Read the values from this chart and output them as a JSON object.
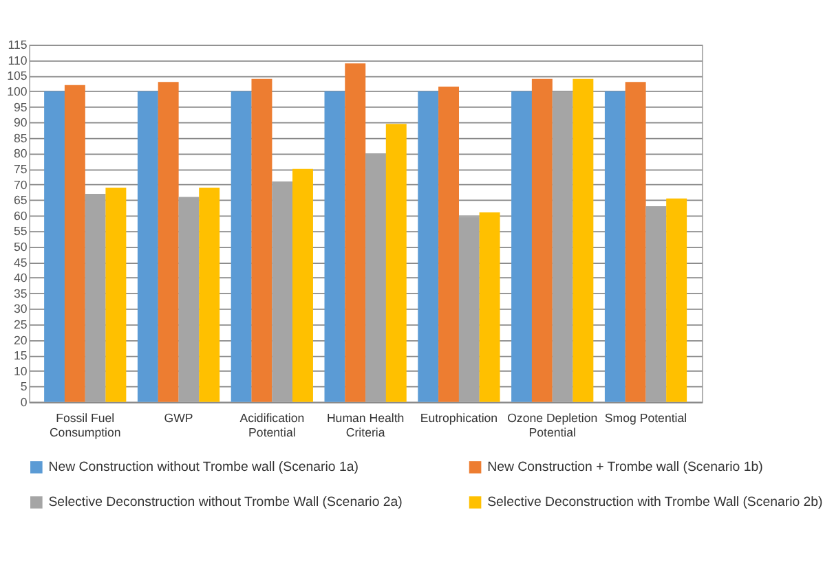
{
  "chart_data": {
    "type": "bar",
    "categories": [
      "Fossil Fuel Consumption",
      "GWP",
      "Acidification Potential",
      "Human Health Criteria",
      "Eutrophication",
      "Ozone Depletion Potential",
      "Smog Potential"
    ],
    "series": [
      {
        "name": "New Construction without Trombe wall (Scenario 1a)",
        "color": "#5b9bd5",
        "values": [
          100,
          100,
          100,
          100,
          100,
          100,
          100
        ]
      },
      {
        "name": "New Construction + Trombe wall (Scenario 1b)",
        "color": "#ed7d31",
        "values": [
          102,
          103,
          104,
          109,
          101.5,
          104,
          103
        ]
      },
      {
        "name": "Selective Deconstruction  without Trombe Wall (Scenario 2a)",
        "color": "#a5a5a5",
        "values": [
          67,
          66,
          71,
          80,
          59.5,
          100,
          63
        ]
      },
      {
        "name": "Selective Deconstruction  with Trombe Wall (Scenario 2b)",
        "color": "#ffc000",
        "values": [
          69,
          69,
          75,
          89.5,
          61,
          104,
          65.5
        ]
      }
    ],
    "ylim": [
      0,
      115
    ],
    "yticks": [
      0,
      5,
      10,
      15,
      20,
      25,
      30,
      35,
      40,
      45,
      50,
      55,
      60,
      65,
      70,
      75,
      80,
      85,
      90,
      95,
      100,
      105,
      110,
      115
    ],
    "grid": "y",
    "legend": "bottom"
  }
}
